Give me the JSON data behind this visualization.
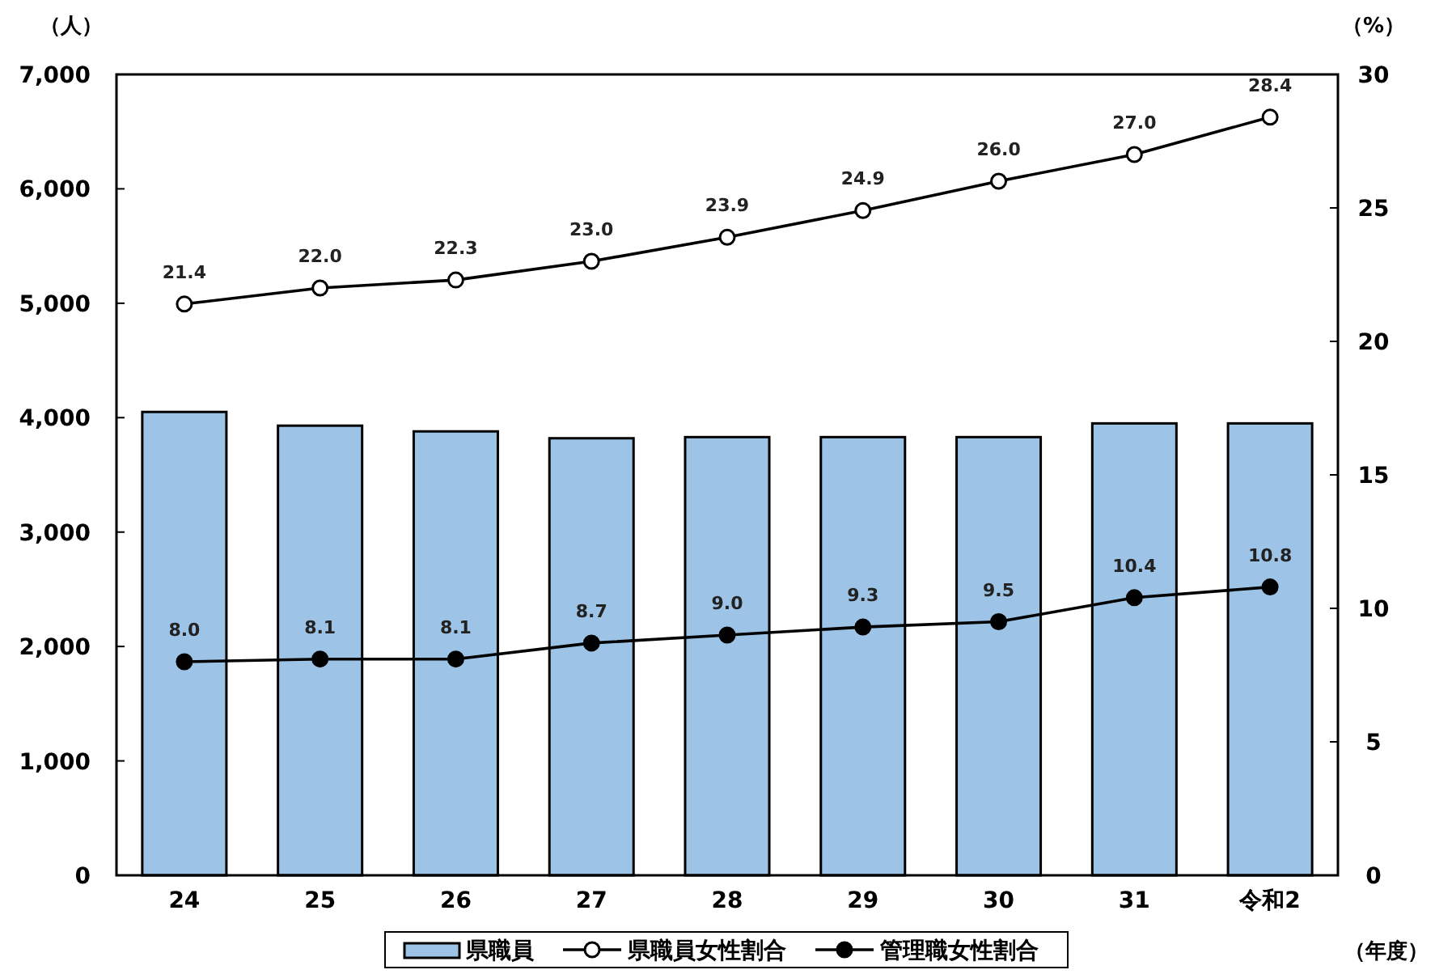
{
  "chart_data": {
    "type": "bar",
    "categories": [
      "24",
      "25",
      "26",
      "27",
      "28",
      "29",
      "30",
      "31",
      "令和2"
    ],
    "ylabel": "（人）",
    "y2label": "（%）",
    "xlabel": "（年度）",
    "ylim": [
      0,
      7000
    ],
    "yticks": [
      0,
      {
        "value": 1000,
        "label": "1,000"
      },
      {
        "value": 2000,
        "label": "2,000"
      },
      {
        "value": 3000,
        "label": "3,000"
      },
      {
        "value": 4000,
        "label": "4,000"
      },
      {
        "value": 5000,
        "label": "5,000"
      },
      {
        "value": 6000,
        "label": "6,000"
      },
      {
        "value": 7000,
        "label": "7,000"
      }
    ],
    "y2lim": [
      0,
      30
    ],
    "y2ticks": [
      0,
      5,
      10,
      15,
      20,
      25,
      30
    ],
    "legend": "bottom",
    "grid": false,
    "marker": "circle",
    "series": [
      {
        "name": "県職員",
        "color": "#9dc3e6",
        "values": [
          4050,
          3930,
          3880,
          3820,
          3830,
          3830,
          3830,
          3950,
          3950
        ]
      },
      {
        "name": "県職員女性割合",
        "type": "line",
        "axis": "y2",
        "color": "#000000",
        "values": [
          21.4,
          22.0,
          22.3,
          23.0,
          23.9,
          24.9,
          26.0,
          27.0,
          28.4
        ],
        "value_labels": [
          "21.4",
          "22.0",
          "22.3",
          "23.0",
          "23.9",
          "24.9",
          "26.0",
          "27.0",
          "28.4"
        ]
      },
      {
        "name": "管理職女性割合",
        "type": "line",
        "axis": "y2",
        "color": "#000000",
        "values": [
          8.0,
          8.1,
          8.1,
          8.7,
          9.0,
          9.3,
          9.5,
          10.4,
          10.8
        ],
        "value_labels": [
          "8.0",
          "8.1",
          "8.1",
          "8.7",
          "9.0",
          "9.3",
          "9.5",
          "10.4",
          "10.8"
        ]
      }
    ]
  }
}
